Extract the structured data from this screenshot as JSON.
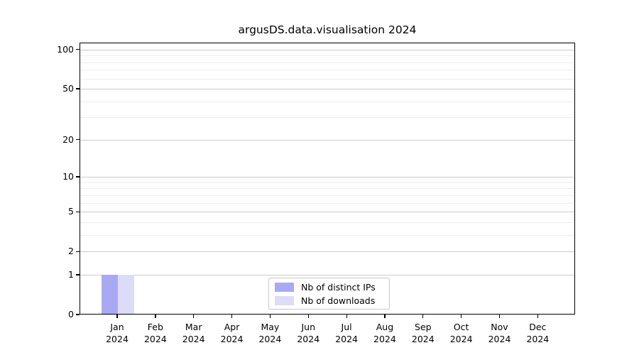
{
  "chart_data": {
    "type": "bar",
    "title": "argusDS.data.visualisation 2024",
    "x_categories": [
      "Jan",
      "Feb",
      "Mar",
      "Apr",
      "May",
      "Jun",
      "Jul",
      "Aug",
      "Sep",
      "Oct",
      "Nov",
      "Dec"
    ],
    "x_year_label": "2024",
    "series": [
      {
        "name": "Nb of distinct IPs",
        "color": "#a9a9f3",
        "values": [
          1,
          0,
          0,
          0,
          0,
          0,
          0,
          0,
          0,
          0,
          0,
          0
        ]
      },
      {
        "name": "Nb of downloads",
        "color": "#dcdcf8",
        "values": [
          1,
          0,
          0,
          0,
          0,
          0,
          0,
          0,
          0,
          0,
          0,
          0
        ]
      }
    ],
    "y_scale": "log1p",
    "ylim": [
      0,
      113
    ],
    "y_major_ticks": [
      0,
      1,
      2,
      5,
      10,
      20,
      50,
      100
    ],
    "y_minor_ticks": [
      3,
      4,
      6,
      7,
      8,
      9,
      30,
      40,
      60,
      70,
      80,
      90
    ],
    "grid": true,
    "legend": {
      "position": "lower center",
      "items": [
        "Nb of distinct IPs",
        "Nb of downloads"
      ]
    }
  }
}
